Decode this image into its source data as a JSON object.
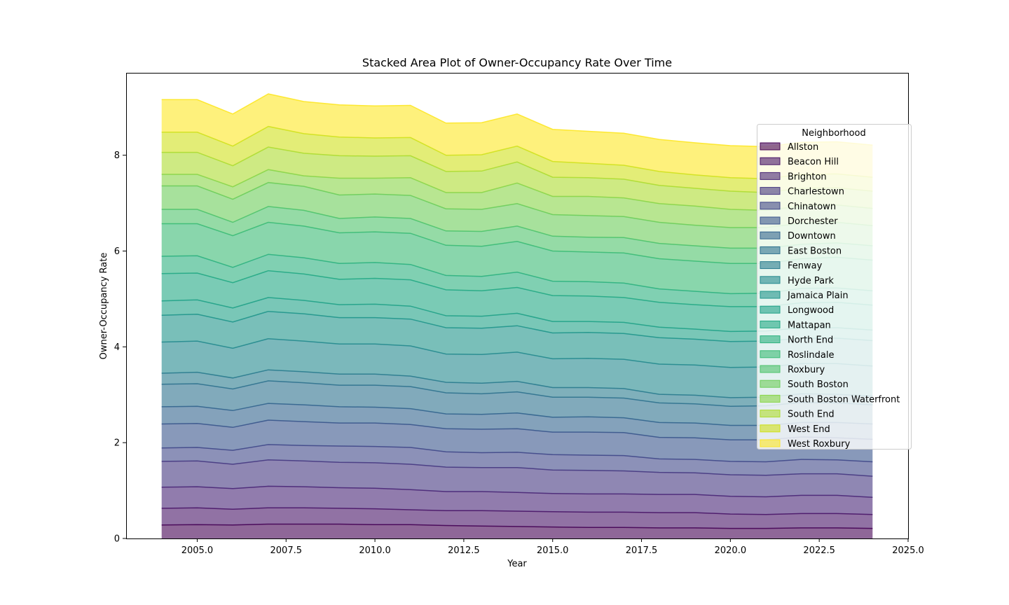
{
  "chart_data": {
    "type": "area",
    "stacked": true,
    "title": "Stacked Area Plot of Owner-Occupancy Rate Over Time",
    "xlabel": "Year",
    "ylabel": "Owner-Occupancy Rate",
    "xlim": [
      2003,
      2025
    ],
    "ylim": [
      0,
      9.72
    ],
    "xticks": [
      2005,
      2007.5,
      2010,
      2012.5,
      2015,
      2017.5,
      2020,
      2022.5,
      2025
    ],
    "xtick_labels": [
      "2005.0",
      "2007.5",
      "2010.0",
      "2012.5",
      "2015.0",
      "2017.5",
      "2020.0",
      "2022.5",
      "2025.0"
    ],
    "yticks": [
      0,
      2,
      4,
      6,
      8
    ],
    "ytick_labels": [
      "0",
      "2",
      "4",
      "6",
      "8"
    ],
    "grid": false,
    "legend_title": "Neighborhood",
    "legend_position": "right",
    "fill_opacity": 0.6,
    "x": [
      2004,
      2005,
      2006,
      2007,
      2008,
      2009,
      2010,
      2011,
      2012,
      2013,
      2014,
      2015,
      2016,
      2017,
      2018,
      2019,
      2020,
      2021,
      2022,
      2023,
      2024
    ],
    "series": [
      {
        "name": "Allston",
        "color": "#440154",
        "values": [
          0.28,
          0.29,
          0.28,
          0.3,
          0.3,
          0.3,
          0.29,
          0.29,
          0.27,
          0.26,
          0.25,
          0.24,
          0.23,
          0.23,
          0.22,
          0.22,
          0.21,
          0.21,
          0.22,
          0.22,
          0.21
        ]
      },
      {
        "name": "Beacon Hill",
        "color": "#481467",
        "values": [
          0.35,
          0.35,
          0.33,
          0.34,
          0.34,
          0.33,
          0.33,
          0.31,
          0.31,
          0.32,
          0.32,
          0.32,
          0.32,
          0.32,
          0.32,
          0.32,
          0.3,
          0.29,
          0.3,
          0.3,
          0.29
        ]
      },
      {
        "name": "Brighton",
        "color": "#482576",
        "values": [
          0.44,
          0.44,
          0.43,
          0.45,
          0.44,
          0.43,
          0.43,
          0.42,
          0.4,
          0.4,
          0.39,
          0.38,
          0.38,
          0.38,
          0.38,
          0.38,
          0.37,
          0.37,
          0.38,
          0.38,
          0.36
        ]
      },
      {
        "name": "Charlestown",
        "color": "#453781",
        "values": [
          0.54,
          0.54,
          0.51,
          0.55,
          0.54,
          0.53,
          0.53,
          0.53,
          0.51,
          0.5,
          0.52,
          0.49,
          0.49,
          0.48,
          0.46,
          0.45,
          0.45,
          0.45,
          0.45,
          0.45,
          0.44
        ]
      },
      {
        "name": "Chinatown",
        "color": "#3f4788",
        "values": [
          0.28,
          0.28,
          0.29,
          0.32,
          0.32,
          0.34,
          0.34,
          0.35,
          0.32,
          0.31,
          0.32,
          0.32,
          0.32,
          0.32,
          0.28,
          0.28,
          0.28,
          0.28,
          0.3,
          0.29,
          0.3
        ]
      },
      {
        "name": "Dorchester",
        "color": "#39558c",
        "values": [
          0.5,
          0.5,
          0.48,
          0.51,
          0.5,
          0.48,
          0.49,
          0.48,
          0.48,
          0.49,
          0.49,
          0.47,
          0.48,
          0.48,
          0.45,
          0.45,
          0.45,
          0.46,
          0.47,
          0.46,
          0.47
        ]
      },
      {
        "name": "Downtown",
        "color": "#32648e",
        "values": [
          0.36,
          0.36,
          0.35,
          0.35,
          0.35,
          0.34,
          0.33,
          0.33,
          0.31,
          0.31,
          0.33,
          0.31,
          0.32,
          0.31,
          0.31,
          0.31,
          0.3,
          0.3,
          0.3,
          0.32,
          0.32
        ]
      },
      {
        "name": "East Boston",
        "color": "#2d718e",
        "values": [
          0.47,
          0.47,
          0.45,
          0.47,
          0.46,
          0.45,
          0.46,
          0.46,
          0.44,
          0.43,
          0.44,
          0.42,
          0.41,
          0.41,
          0.41,
          0.4,
          0.4,
          0.41,
          0.42,
          0.41,
          0.4
        ]
      },
      {
        "name": "Fenway",
        "color": "#297b8e",
        "values": [
          0.23,
          0.24,
          0.23,
          0.23,
          0.23,
          0.23,
          0.23,
          0.22,
          0.22,
          0.22,
          0.22,
          0.2,
          0.2,
          0.2,
          0.18,
          0.18,
          0.18,
          0.18,
          0.18,
          0.18,
          0.18
        ]
      },
      {
        "name": "Hyde Park",
        "color": "#23898e",
        "values": [
          0.65,
          0.65,
          0.62,
          0.65,
          0.64,
          0.63,
          0.63,
          0.63,
          0.59,
          0.6,
          0.61,
          0.6,
          0.61,
          0.61,
          0.63,
          0.63,
          0.63,
          0.63,
          0.63,
          0.64,
          0.63
        ]
      },
      {
        "name": "Jamaica Plain",
        "color": "#1f958b",
        "values": [
          0.56,
          0.56,
          0.55,
          0.57,
          0.57,
          0.55,
          0.55,
          0.56,
          0.55,
          0.55,
          0.55,
          0.54,
          0.54,
          0.54,
          0.55,
          0.54,
          0.54,
          0.54,
          0.53,
          0.53,
          0.53
        ]
      },
      {
        "name": "Longwood",
        "color": "#1fa187",
        "values": [
          0.3,
          0.3,
          0.29,
          0.29,
          0.28,
          0.27,
          0.28,
          0.27,
          0.25,
          0.25,
          0.26,
          0.24,
          0.23,
          0.23,
          0.22,
          0.21,
          0.21,
          0.21,
          0.22,
          0.22,
          0.22
        ]
      },
      {
        "name": "Mattapan",
        "color": "#22a884",
        "values": [
          0.57,
          0.56,
          0.53,
          0.56,
          0.55,
          0.53,
          0.54,
          0.55,
          0.54,
          0.53,
          0.54,
          0.54,
          0.53,
          0.52,
          0.52,
          0.51,
          0.52,
          0.51,
          0.52,
          0.53,
          0.52
        ]
      },
      {
        "name": "North End",
        "color": "#2cb17e",
        "values": [
          0.36,
          0.36,
          0.32,
          0.34,
          0.34,
          0.33,
          0.33,
          0.32,
          0.3,
          0.3,
          0.32,
          0.3,
          0.3,
          0.3,
          0.28,
          0.28,
          0.27,
          0.28,
          0.3,
          0.3,
          0.3
        ]
      },
      {
        "name": "Roslindale",
        "color": "#3bbb75",
        "values": [
          0.68,
          0.67,
          0.66,
          0.67,
          0.66,
          0.64,
          0.64,
          0.65,
          0.63,
          0.63,
          0.64,
          0.63,
          0.62,
          0.63,
          0.63,
          0.63,
          0.63,
          0.62,
          0.62,
          0.64,
          0.64
        ]
      },
      {
        "name": "Roxbury",
        "color": "#4ec36b",
        "values": [
          0.3,
          0.3,
          0.28,
          0.33,
          0.33,
          0.3,
          0.31,
          0.31,
          0.3,
          0.31,
          0.32,
          0.31,
          0.31,
          0.32,
          0.32,
          0.32,
          0.32,
          0.32,
          0.3,
          0.3,
          0.3
        ]
      },
      {
        "name": "South Boston",
        "color": "#6ccd5a",
        "values": [
          0.49,
          0.49,
          0.48,
          0.5,
          0.5,
          0.49,
          0.48,
          0.48,
          0.46,
          0.46,
          0.47,
          0.45,
          0.45,
          0.44,
          0.44,
          0.43,
          0.43,
          0.43,
          0.44,
          0.43,
          0.42
        ]
      },
      {
        "name": "South Boston Waterfront",
        "color": "#89d548",
        "values": [
          0.24,
          0.24,
          0.26,
          0.27,
          0.22,
          0.35,
          0.33,
          0.37,
          0.34,
          0.35,
          0.43,
          0.38,
          0.4,
          0.39,
          0.39,
          0.4,
          0.38,
          0.36,
          0.36,
          0.36,
          0.36
        ]
      },
      {
        "name": "South End",
        "color": "#addc30",
        "values": [
          0.46,
          0.46,
          0.44,
          0.47,
          0.47,
          0.47,
          0.46,
          0.46,
          0.44,
          0.45,
          0.44,
          0.4,
          0.39,
          0.39,
          0.38,
          0.37,
          0.38,
          0.37,
          0.37,
          0.36,
          0.36
        ]
      },
      {
        "name": "West End",
        "color": "#d0e11c",
        "values": [
          0.42,
          0.42,
          0.41,
          0.43,
          0.41,
          0.39,
          0.38,
          0.38,
          0.34,
          0.34,
          0.33,
          0.33,
          0.3,
          0.29,
          0.29,
          0.28,
          0.28,
          0.29,
          0.29,
          0.29,
          0.29
        ]
      },
      {
        "name": "West Roxbury",
        "color": "#fde725",
        "values": [
          0.68,
          0.68,
          0.67,
          0.68,
          0.67,
          0.67,
          0.67,
          0.67,
          0.67,
          0.67,
          0.67,
          0.67,
          0.67,
          0.67,
          0.67,
          0.67,
          0.67,
          0.67,
          0.67,
          0.67,
          0.67
        ]
      }
    ]
  }
}
